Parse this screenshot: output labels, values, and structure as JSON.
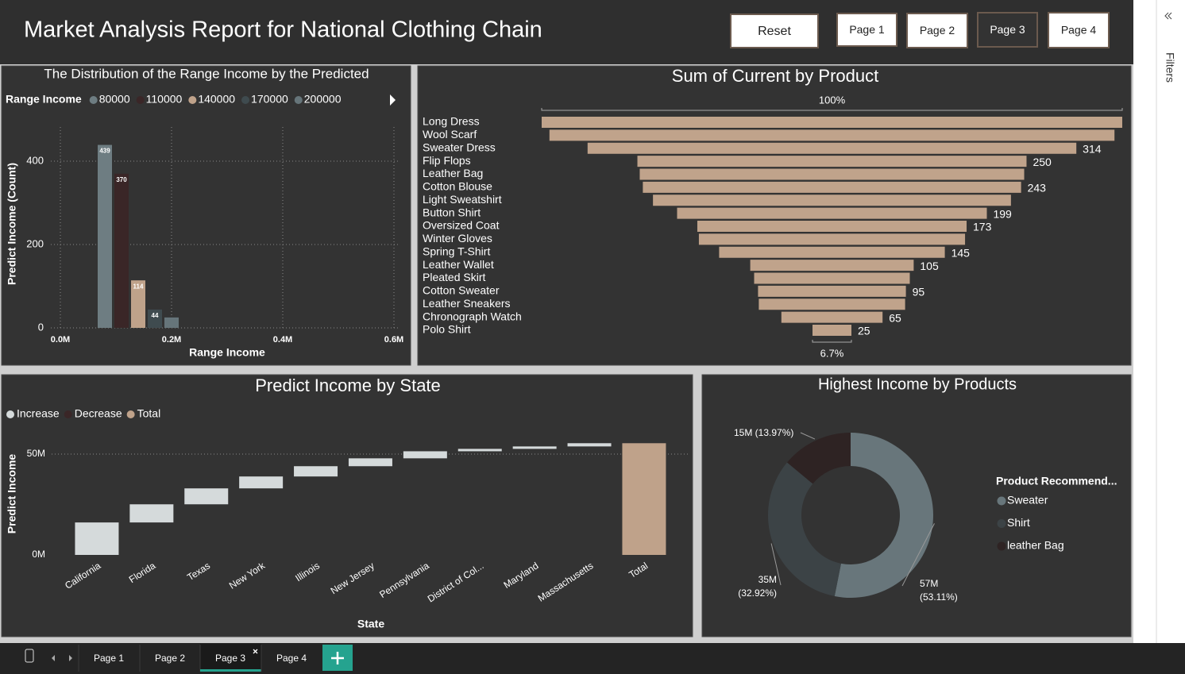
{
  "header": {
    "title": "Market Analysis Report for National Clothing Chain",
    "buttons": [
      "Reset",
      "Page 1",
      "Page 2",
      "Page 3",
      "Page 4"
    ],
    "active_button": 3
  },
  "filters": "Filters",
  "tabs": [
    "Page 1",
    "Page 2",
    "Page 3",
    "Page 4"
  ],
  "active_tab": 2,
  "chart_data": [
    {
      "type": "bar",
      "title": "The Distribution of the Range Income by the Predicted",
      "legend_title": "Range Income",
      "xlabel": "Range Income",
      "ylabel": "Predict Income (Count)",
      "series": [
        {
          "name": "80000",
          "color": "#6e7d82",
          "x": [
            80000
          ],
          "values": [
            439
          ]
        },
        {
          "name": "110000",
          "color": "#3a2627",
          "x": [
            110000
          ],
          "values": [
            370
          ]
        },
        {
          "name": "140000",
          "color": "#bfa28a",
          "x": [
            140000
          ],
          "values": [
            114
          ]
        },
        {
          "name": "170000",
          "color": "#3f4b4f",
          "x": [
            170000
          ],
          "values": [
            44
          ]
        },
        {
          "name": "200000",
          "color": "#66757a",
          "x": [
            200000
          ],
          "values": [
            25
          ]
        }
      ],
      "xlim": [
        0,
        600000
      ],
      "xticks": [
        {
          "value": 0,
          "label": "0.0M"
        },
        {
          "value": 200000,
          "label": "0.2M"
        },
        {
          "value": 400000,
          "label": "0.4M"
        },
        {
          "value": 600000,
          "label": "0.6M"
        }
      ],
      "ylim": [
        0,
        470
      ],
      "yticks": [
        0,
        200,
        400
      ],
      "grid": true
    },
    {
      "type": "funnel",
      "title": "Sum of Current by Product",
      "color": "#c0a38b",
      "categories": [
        "Long Dress",
        "Wool Scarf",
        "Sweater Dress",
        "Flip Flops",
        "Leather Bag",
        "Cotton Blouse",
        "Light Sweatshirt",
        "Button Shirt",
        "Oversized Coat",
        "Winter Gloves",
        "Spring T-Shirt",
        "Leather Wallet",
        "Pleated Skirt",
        "Cotton Sweater",
        "Leather Sneakers",
        "Chronograph Watch",
        "Polo Shirt"
      ],
      "values": [
        373,
        363,
        314,
        250,
        247,
        243,
        230,
        199,
        173,
        171,
        145,
        105,
        100,
        95,
        94,
        65,
        25
      ],
      "value_labels": [
        null,
        null,
        "314",
        "250",
        null,
        "243",
        null,
        "199",
        "173",
        null,
        "145",
        "105",
        null,
        "95",
        null,
        "65",
        "25"
      ],
      "top_label": "100%",
      "bottom_label": "6.7%"
    },
    {
      "type": "waterfall",
      "title": "Predict Income by State",
      "xlabel": "State",
      "ylabel": "Predict Income",
      "legend": [
        {
          "name": "Increase",
          "color": "#d5dadb"
        },
        {
          "name": "Decrease",
          "color": "#3a2627"
        },
        {
          "name": "Total",
          "color": "#bfa28a"
        }
      ],
      "categories": [
        "California",
        "Florida",
        "Texas",
        "New York",
        "Illinois",
        "New Jersey",
        "Pennsylvania",
        "District of Col...",
        "Maryland",
        "Massachusetts",
        "Total"
      ],
      "values": [
        16100000,
        9000000,
        7900000,
        5900000,
        5100000,
        3900000,
        3500000,
        1200000,
        1200000,
        1600000,
        55400000
      ],
      "ylim": [
        0,
        60000000
      ],
      "yticks": [
        {
          "value": 0,
          "label": "0M"
        },
        {
          "value": 50000000,
          "label": "50M"
        }
      ],
      "grid": true
    },
    {
      "type": "pie",
      "donut": true,
      "title": "Highest Income by Products",
      "legend_title": "Product Recommend...",
      "categories": [
        "Sweater",
        "Shirt",
        "leather Bag"
      ],
      "values": [
        56990000,
        35320000,
        14990000
      ],
      "value_labels": [
        "57M (53.11%)",
        "35M (32.92%)",
        "15M (13.97%)"
      ],
      "colors": [
        "#68767b",
        "#3c4346",
        "#2e2323"
      ]
    }
  ]
}
